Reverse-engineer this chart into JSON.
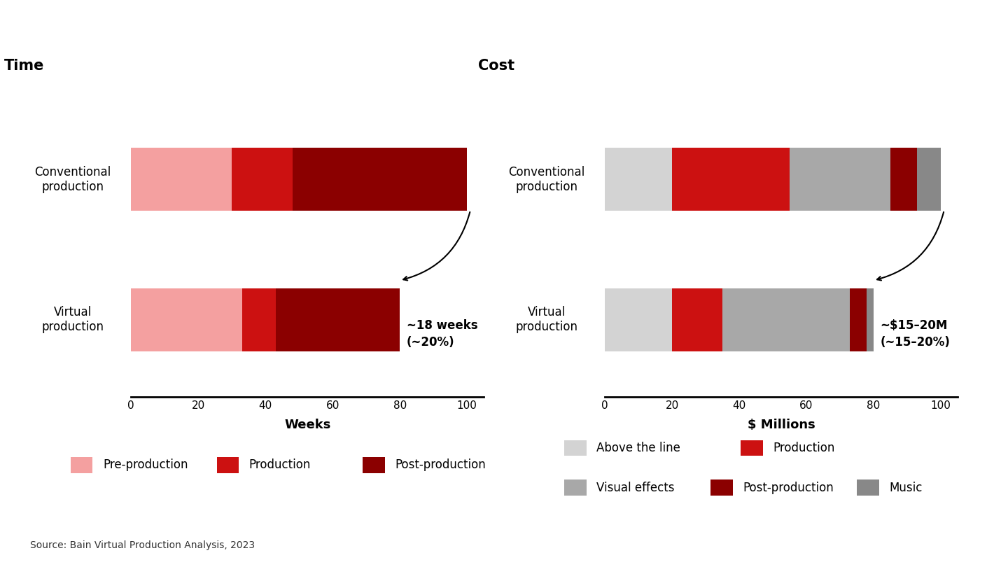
{
  "time_title": "Time",
  "cost_title": "Cost",
  "time_xlabel": "Weeks",
  "cost_xlabel": "$ Millions",
  "time_xlim": [
    0,
    105
  ],
  "cost_xlim": [
    0,
    105
  ],
  "time_rows": [
    {
      "label": "Conventional\nproduction",
      "segments": [
        30,
        18,
        52
      ]
    },
    {
      "label": "Virtual\nproduction",
      "segments": [
        33,
        10,
        37
      ]
    }
  ],
  "cost_rows": [
    {
      "label": "Conventional\nproduction",
      "segments": [
        20,
        35,
        30,
        8,
        7
      ]
    },
    {
      "label": "Virtual\nproduction",
      "segments": [
        20,
        15,
        38,
        5,
        2
      ]
    }
  ],
  "time_colors": [
    "#F4A0A0",
    "#CC1111",
    "#8B0000"
  ],
  "cost_colors": [
    "#D3D3D3",
    "#CC1111",
    "#A8A8A8",
    "#8B0000",
    "#888888"
  ],
  "time_legend": [
    {
      "label": "Pre-production",
      "color": "#F4A0A0"
    },
    {
      "label": "Production",
      "color": "#CC1111"
    },
    {
      "label": "Post-production",
      "color": "#8B0000"
    }
  ],
  "cost_legend_row1": [
    {
      "label": "Above the line",
      "color": "#D3D3D3"
    },
    {
      "label": "Production",
      "color": "#CC1111"
    }
  ],
  "cost_legend_row2": [
    {
      "label": "Visual effects",
      "color": "#A8A8A8"
    },
    {
      "label": "Post-production",
      "color": "#8B0000"
    },
    {
      "label": "Music",
      "color": "#888888"
    }
  ],
  "time_annotation": "~18 weeks\n(~20%)",
  "cost_annotation": "~$15–20M\n(~15–20%)",
  "source_text": "Source: Bain Virtual Production Analysis, 2023",
  "bar_height": 0.45,
  "background_color": "#FFFFFF",
  "title_fontsize": 15,
  "label_fontsize": 12,
  "tick_fontsize": 11,
  "legend_fontsize": 12,
  "annotation_fontsize": 12,
  "source_fontsize": 10
}
